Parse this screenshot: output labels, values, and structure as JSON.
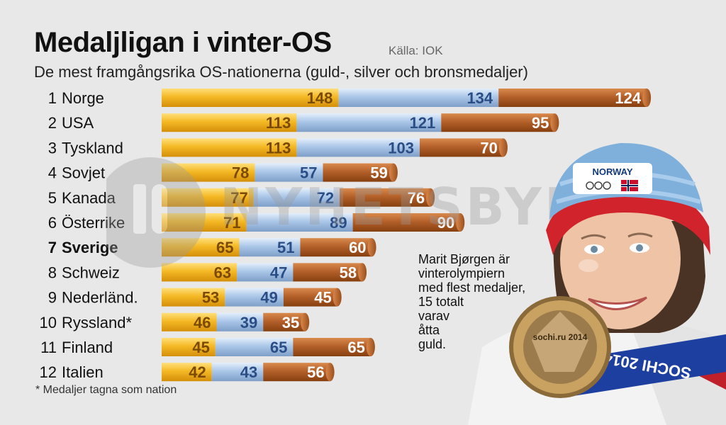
{
  "header": {
    "title": "Medaljligan i vinter-OS",
    "source": "Källa: IOK",
    "subtitle": "De mest framgångsrika OS-nationerna (guld-, silver och bronsmedaljer)"
  },
  "footnote": "* Medaljer tagna som nation",
  "watermark": {
    "text": "NYHETSBYRÅN"
  },
  "caption": {
    "lines": [
      "Marit Bjørgen är",
      "vinterolympiern",
      "med flest medaljer,",
      "15 totalt",
      "varav",
      "åtta",
      "guld."
    ]
  },
  "photo": {
    "hat_text": "NORWAY",
    "ribbon_text": "SOCHI 2014",
    "medal_text": "sochi.ru 2014"
  },
  "colors": {
    "gold": "#f2b21a",
    "silver": "#a9c4e6",
    "bronze": "#b7652a",
    "highlight_country": "#000000"
  },
  "chart_data": {
    "type": "bar",
    "orientation": "horizontal",
    "stacked": true,
    "title": "Medaljligan i vinter-OS",
    "subtitle": "De mest framgångsrika OS-nationerna (guld-, silver och bronsmedaljer)",
    "ranks": [
      "1",
      "2",
      "3",
      "4",
      "5",
      "6",
      "7",
      "8",
      "9",
      "10",
      "11",
      "12"
    ],
    "categories": [
      "Norge",
      "USA",
      "Tyskland",
      "Sovjet",
      "Kanada",
      "Österrike",
      "Sverige",
      "Schweiz",
      "Nederländ.",
      "Ryssland*",
      "Finland",
      "Italien"
    ],
    "highlight": "Sverige",
    "series": [
      {
        "name": "guld",
        "values": [
          148,
          113,
          113,
          78,
          77,
          71,
          65,
          63,
          53,
          46,
          45,
          42
        ]
      },
      {
        "name": "silver",
        "values": [
          134,
          121,
          103,
          57,
          72,
          89,
          51,
          47,
          49,
          39,
          65,
          43
        ]
      },
      {
        "name": "brons",
        "values": [
          124,
          95,
          70,
          59,
          76,
          90,
          60,
          58,
          45,
          35,
          65,
          56
        ]
      }
    ]
  }
}
